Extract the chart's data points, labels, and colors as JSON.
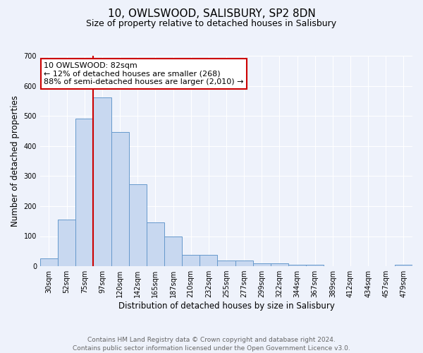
{
  "title": "10, OWLSWOOD, SALISBURY, SP2 8DN",
  "subtitle": "Size of property relative to detached houses in Salisbury",
  "xlabel": "Distribution of detached houses by size in Salisbury",
  "ylabel": "Number of detached properties",
  "categories": [
    "30sqm",
    "52sqm",
    "75sqm",
    "97sqm",
    "120sqm",
    "142sqm",
    "165sqm",
    "187sqm",
    "210sqm",
    "232sqm",
    "255sqm",
    "277sqm",
    "299sqm",
    "322sqm",
    "344sqm",
    "367sqm",
    "389sqm",
    "412sqm",
    "434sqm",
    "457sqm",
    "479sqm"
  ],
  "values": [
    25,
    155,
    492,
    562,
    447,
    273,
    145,
    98,
    37,
    37,
    18,
    18,
    10,
    10,
    4,
    4,
    0,
    0,
    0,
    0,
    5
  ],
  "bar_color": "#c8d8f0",
  "bar_edge_color": "#6699cc",
  "vline_color": "#cc0000",
  "vline_x_index": 2,
  "annotation_title": "10 OWLSWOOD: 82sqm",
  "annotation_line1": "← 12% of detached houses are smaller (268)",
  "annotation_line2": "88% of semi-detached houses are larger (2,010) →",
  "annotation_box_color": "#ffffff",
  "annotation_box_edge": "#cc0000",
  "ylim": [
    0,
    700
  ],
  "yticks": [
    0,
    100,
    200,
    300,
    400,
    500,
    600,
    700
  ],
  "footer_line1": "Contains HM Land Registry data © Crown copyright and database right 2024.",
  "footer_line2": "Contains public sector information licensed under the Open Government Licence v3.0.",
  "bg_color": "#eef2fb",
  "plot_bg_color": "#eef2fb",
  "title_fontsize": 11,
  "subtitle_fontsize": 9,
  "axis_label_fontsize": 8.5,
  "tick_fontsize": 7,
  "annotation_fontsize": 8,
  "footer_fontsize": 6.5
}
